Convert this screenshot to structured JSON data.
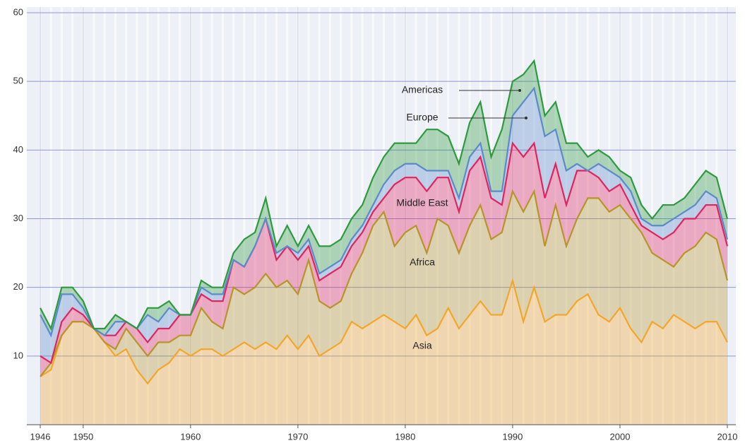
{
  "chart_data": {
    "type": "stacked_area",
    "x": [
      1946,
      1947,
      1948,
      1949,
      1950,
      1951,
      1952,
      1953,
      1954,
      1955,
      1956,
      1957,
      1958,
      1959,
      1960,
      1961,
      1962,
      1963,
      1964,
      1965,
      1966,
      1967,
      1968,
      1969,
      1970,
      1971,
      1972,
      1973,
      1974,
      1975,
      1976,
      1977,
      1978,
      1979,
      1980,
      1981,
      1982,
      1983,
      1984,
      1985,
      1986,
      1987,
      1988,
      1989,
      1990,
      1991,
      1992,
      1993,
      1994,
      1995,
      1996,
      1997,
      1998,
      1999,
      2000,
      2001,
      2002,
      2003,
      2004,
      2005,
      2006,
      2007,
      2008,
      2009,
      2010
    ],
    "series": [
      {
        "name": "Asia",
        "color": "#f2a72c",
        "values": [
          7,
          8,
          13,
          15,
          15,
          14,
          12,
          10,
          11,
          8,
          6,
          8,
          9,
          11,
          10,
          11,
          11,
          10,
          11,
          12,
          11,
          12,
          11,
          13,
          11,
          13,
          10,
          11,
          12,
          15,
          14,
          15,
          16,
          15,
          14,
          16,
          13,
          14,
          17,
          14,
          16,
          18,
          16,
          16,
          21,
          15,
          20,
          15,
          16,
          16,
          18,
          19,
          16,
          15,
          17,
          14,
          12,
          15,
          14,
          16,
          15,
          14,
          15,
          15,
          12
        ]
      },
      {
        "name": "Africa",
        "color": "#b8942a",
        "values": [
          0,
          1,
          0,
          0,
          0,
          0,
          0,
          1,
          3,
          4,
          4,
          4,
          3,
          2,
          3,
          6,
          4,
          4,
          9,
          7,
          9,
          10,
          9,
          8,
          8,
          11,
          8,
          6,
          6,
          7,
          11,
          14,
          15,
          11,
          14,
          13,
          12,
          16,
          12,
          11,
          13,
          14,
          11,
          12,
          13,
          16,
          14,
          11,
          16,
          10,
          12,
          14,
          17,
          16,
          15,
          16,
          16,
          10,
          10,
          7,
          10,
          12,
          13,
          12,
          9
        ]
      },
      {
        "name": "Middle East",
        "color": "#e0245e",
        "values": [
          3,
          0,
          2,
          2,
          1,
          0,
          1,
          2,
          1,
          2,
          2,
          2,
          2,
          3,
          3,
          2,
          3,
          4,
          4,
          4,
          6,
          8,
          4,
          5,
          5,
          2,
          3,
          5,
          5,
          4,
          3,
          2,
          2,
          9,
          8,
          7,
          9,
          6,
          7,
          6,
          8,
          7,
          6,
          4,
          7,
          8,
          7,
          7,
          6,
          6,
          7,
          4,
          3,
          3,
          3,
          2,
          1,
          3,
          3,
          5,
          5,
          4,
          4,
          5,
          5
        ]
      },
      {
        "name": "Europe",
        "color": "#5b8bc8",
        "values": [
          6,
          4,
          4,
          2,
          1,
          0,
          0,
          2,
          0,
          0,
          4,
          1,
          3,
          0,
          0,
          1,
          1,
          1,
          0,
          0,
          0,
          0,
          1,
          0,
          1,
          1,
          1,
          1,
          1,
          1,
          1,
          1,
          2,
          2,
          2,
          2,
          3,
          1,
          1,
          2,
          2,
          2,
          1,
          2,
          4,
          8,
          8,
          9,
          5,
          5,
          1,
          0,
          2,
          3,
          1,
          2,
          1,
          1,
          2,
          2,
          1,
          2,
          2,
          1,
          1
        ]
      },
      {
        "name": "Americas",
        "color": "#2e9a3e",
        "values": [
          1,
          1,
          1,
          1,
          1,
          0,
          1,
          1,
          0,
          0,
          1,
          2,
          1,
          0,
          0,
          1,
          1,
          1,
          1,
          4,
          2,
          3,
          1,
          3,
          1,
          2,
          4,
          3,
          3,
          3,
          3,
          4,
          4,
          4,
          3,
          3,
          6,
          6,
          5,
          5,
          5,
          6,
          5,
          9,
          5,
          4,
          4,
          3,
          4,
          4,
          3,
          2,
          2,
          2,
          1,
          2,
          2,
          1,
          3,
          2,
          2,
          3,
          3,
          3,
          3
        ]
      }
    ],
    "xlim": [
      1946,
      2010
    ],
    "xticks": [
      1946,
      1950,
      1960,
      1970,
      1980,
      1990,
      2000,
      2010
    ],
    "ylim": [
      0,
      60
    ],
    "yticks": [
      10,
      20,
      30,
      40,
      50,
      60
    ],
    "grid": true
  }
}
